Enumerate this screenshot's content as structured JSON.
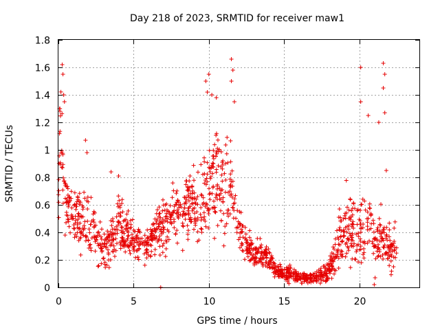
{
  "chart_data": {
    "type": "scatter",
    "title": "Day 218 of 2023, SRMTID for receiver maw1",
    "xlabel": "GPS time / hours",
    "ylabel": "SRMTID / TECUs",
    "xlim": [
      0,
      24
    ],
    "ylim": [
      0,
      1.8
    ],
    "xticks": [
      0,
      5,
      10,
      15,
      20
    ],
    "yticks": [
      0,
      0.2,
      0.4,
      0.6,
      0.8,
      1,
      1.2,
      1.4,
      1.6,
      1.8
    ],
    "xtick_labels": [
      "0",
      "5",
      "10",
      "15",
      "20"
    ],
    "ytick_labels": [
      "0",
      "0.2",
      "0.4",
      "0.6",
      "0.8",
      "1",
      "1.2",
      "1.4",
      "1.6",
      "1.8"
    ],
    "grid": true,
    "marker": "+",
    "color": "#e60000",
    "series": [
      {
        "name": "SRMTID",
        "note": "approximate envelope of the dense cloud of measurements read off the plot",
        "x": [
          0.0,
          0.1,
          0.2,
          0.3,
          0.4,
          0.5,
          0.7,
          1.0,
          1.3,
          1.6,
          2.0,
          2.4,
          2.8,
          3.2,
          3.6,
          4.0,
          4.5,
          5.0,
          5.5,
          6.0,
          6.5,
          7.0,
          7.5,
          8.0,
          8.5,
          9.0,
          9.5,
          10.0,
          10.5,
          11.0,
          11.5,
          12.0,
          12.5,
          13.0,
          13.5,
          14.0,
          14.5,
          15.0,
          15.5,
          16.0,
          16.5,
          17.0,
          17.5,
          18.0,
          18.5,
          19.0,
          19.5,
          20.0,
          20.5,
          21.0,
          21.5,
          22.0,
          22.5
        ],
        "y": [
          0.6,
          1.25,
          1.0,
          0.85,
          0.7,
          0.6,
          0.55,
          0.5,
          0.5,
          0.48,
          0.45,
          0.4,
          0.3,
          0.3,
          0.35,
          0.45,
          0.4,
          0.35,
          0.32,
          0.3,
          0.4,
          0.45,
          0.5,
          0.55,
          0.6,
          0.6,
          0.6,
          0.75,
          0.8,
          0.7,
          0.75,
          0.45,
          0.3,
          0.25,
          0.25,
          0.2,
          0.12,
          0.1,
          0.1,
          0.07,
          0.07,
          0.07,
          0.09,
          0.12,
          0.25,
          0.4,
          0.4,
          0.4,
          0.45,
          0.35,
          0.35,
          0.3,
          0.3
        ],
        "spread": [
          0.2,
          0.3,
          0.3,
          0.25,
          0.2,
          0.18,
          0.18,
          0.18,
          0.18,
          0.2,
          0.2,
          0.18,
          0.15,
          0.15,
          0.18,
          0.2,
          0.15,
          0.12,
          0.12,
          0.12,
          0.15,
          0.2,
          0.2,
          0.2,
          0.25,
          0.25,
          0.3,
          0.35,
          0.3,
          0.3,
          0.25,
          0.15,
          0.1,
          0.08,
          0.08,
          0.08,
          0.06,
          0.05,
          0.05,
          0.04,
          0.04,
          0.04,
          0.05,
          0.08,
          0.15,
          0.25,
          0.25,
          0.25,
          0.25,
          0.2,
          0.2,
          0.15,
          0.15
        ],
        "peaks": [
          {
            "x": 0.1,
            "y": 1.3
          },
          {
            "x": 0.25,
            "y": 1.62
          },
          {
            "x": 0.3,
            "y": 1.55
          },
          {
            "x": 0.35,
            "y": 1.4
          },
          {
            "x": 0.4,
            "y": 1.35
          },
          {
            "x": 1.8,
            "y": 1.07
          },
          {
            "x": 1.9,
            "y": 0.98
          },
          {
            "x": 3.5,
            "y": 0.84
          },
          {
            "x": 4.0,
            "y": 0.81
          },
          {
            "x": 6.8,
            "y": 0.0
          },
          {
            "x": 9.8,
            "y": 1.5
          },
          {
            "x": 9.9,
            "y": 1.42
          },
          {
            "x": 10.0,
            "y": 1.55
          },
          {
            "x": 10.2,
            "y": 1.4
          },
          {
            "x": 10.5,
            "y": 1.38
          },
          {
            "x": 11.5,
            "y": 1.66
          },
          {
            "x": 11.6,
            "y": 1.58
          },
          {
            "x": 11.5,
            "y": 1.5
          },
          {
            "x": 11.7,
            "y": 1.35
          },
          {
            "x": 20.1,
            "y": 1.6
          },
          {
            "x": 20.1,
            "y": 1.35
          },
          {
            "x": 20.6,
            "y": 1.25
          },
          {
            "x": 21.3,
            "y": 1.2
          },
          {
            "x": 21.6,
            "y": 1.63
          },
          {
            "x": 21.7,
            "y": 1.55
          },
          {
            "x": 21.6,
            "y": 1.45
          },
          {
            "x": 21.7,
            "y": 1.27
          },
          {
            "x": 21.0,
            "y": 0.02
          },
          {
            "x": 21.8,
            "y": 0.85
          }
        ]
      }
    ]
  }
}
